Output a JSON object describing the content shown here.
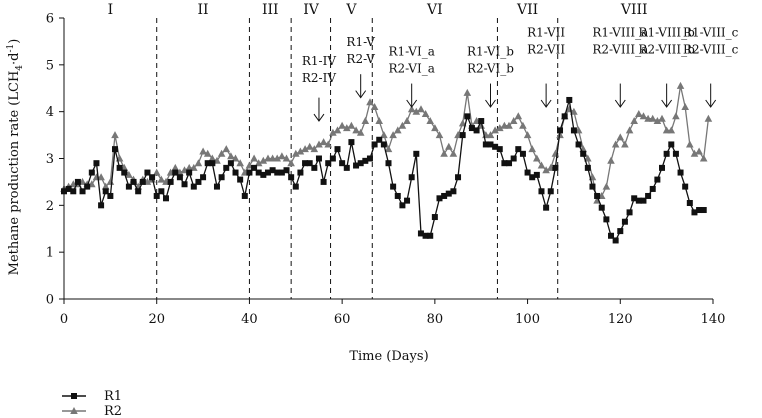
{
  "chart_data": {
    "type": "line",
    "title": "",
    "xlabel": "Time (Days)",
    "ylabel": "Methane production rate (LCH",
    "ylabel_sub": "4",
    "ylabel_mid": "·d",
    "ylabel_sup": "-1",
    "ylabel_end": ")",
    "xlim": [
      0,
      140
    ],
    "ylim": [
      0,
      6
    ],
    "x_ticks": [
      0,
      20,
      40,
      60,
      80,
      100,
      120,
      140
    ],
    "y_ticks": [
      0,
      1,
      2,
      3,
      4,
      5,
      6
    ],
    "grid": false,
    "legend_position": "bottom-left",
    "phase_boundaries": [
      20,
      40,
      49,
      57.5,
      66.5,
      93.5,
      106.5
    ],
    "phases": [
      {
        "label": "I",
        "x": 10
      },
      {
        "label": "II",
        "x": 30
      },
      {
        "label": "III",
        "x": 44.5
      },
      {
        "label": "IV",
        "x": 53.3
      },
      {
        "label": "V",
        "x": 62
      },
      {
        "label": "VI",
        "x": 80
      },
      {
        "label": "VII",
        "x": 100
      },
      {
        "label": "VIII",
        "x": 123
      }
    ],
    "annotations": [
      {
        "lines": [
          "R1-IV",
          "R2-IV"
        ],
        "x": 55,
        "text_y": 5.0,
        "arrow_from": 4.3,
        "arrow_to": 3.8
      },
      {
        "lines": [
          "R1-V",
          "R2-V"
        ],
        "x": 64,
        "text_y": 5.4,
        "arrow_from": 4.8,
        "arrow_to": 4.3
      },
      {
        "lines": [
          "R1-VI_a",
          "R2-VI_a"
        ],
        "x": 75,
        "text_y": 5.2,
        "arrow_from": 4.6,
        "arrow_to": 4.1
      },
      {
        "lines": [
          "R1-VI_b",
          "R2-VI_b"
        ],
        "x": 92,
        "text_y": 5.2,
        "arrow_from": 4.6,
        "arrow_to": 4.1
      },
      {
        "lines": [
          "R1-VII",
          "R2-VII"
        ],
        "x": 104,
        "text_y": 5.6,
        "arrow_from": 4.6,
        "arrow_to": 4.1
      },
      {
        "lines": [
          "R1-VIII_a",
          "R2-VIII_a"
        ],
        "x": 120,
        "text_y": 5.6,
        "arrow_from": 4.6,
        "arrow_to": 4.1
      },
      {
        "lines": [
          "R1-VIII_b",
          "R2-VIII_b"
        ],
        "x": 130,
        "text_y": 5.6,
        "arrow_from": 4.6,
        "arrow_to": 4.1
      },
      {
        "lines": [
          "R1-VIII_c",
          "R2-VIII_c"
        ],
        "x": 139.5,
        "text_y": 5.6,
        "arrow_from": 4.6,
        "arrow_to": 4.1
      }
    ],
    "series": [
      {
        "name": "R1",
        "marker": "square",
        "color": "#111111",
        "points": [
          [
            0,
            2.3
          ],
          [
            1,
            2.35
          ],
          [
            2,
            2.3
          ],
          [
            3,
            2.5
          ],
          [
            4,
            2.3
          ],
          [
            5,
            2.4
          ],
          [
            6,
            2.7
          ],
          [
            7,
            2.9
          ],
          [
            8,
            2.0
          ],
          [
            9,
            2.3
          ],
          [
            10,
            2.2
          ],
          [
            11,
            3.2
          ],
          [
            12,
            2.8
          ],
          [
            13,
            2.7
          ],
          [
            14,
            2.4
          ],
          [
            15,
            2.5
          ],
          [
            16,
            2.3
          ],
          [
            17,
            2.5
          ],
          [
            18,
            2.7
          ],
          [
            19,
            2.6
          ],
          [
            20,
            2.2
          ],
          [
            21,
            2.3
          ],
          [
            22,
            2.15
          ],
          [
            23,
            2.5
          ],
          [
            24,
            2.7
          ],
          [
            25,
            2.6
          ],
          [
            26,
            2.45
          ],
          [
            27,
            2.7
          ],
          [
            28,
            2.4
          ],
          [
            29,
            2.5
          ],
          [
            30,
            2.6
          ],
          [
            31,
            2.9
          ],
          [
            32,
            2.9
          ],
          [
            33,
            2.4
          ],
          [
            34,
            2.6
          ],
          [
            35,
            2.8
          ],
          [
            36,
            2.9
          ],
          [
            37,
            2.7
          ],
          [
            38,
            2.55
          ],
          [
            39,
            2.2
          ],
          [
            40,
            2.7
          ],
          [
            41,
            2.8
          ],
          [
            42,
            2.7
          ],
          [
            43,
            2.65
          ],
          [
            44,
            2.7
          ],
          [
            45,
            2.75
          ],
          [
            46,
            2.7
          ],
          [
            47,
            2.7
          ],
          [
            48,
            2.75
          ],
          [
            49,
            2.6
          ],
          [
            50,
            2.4
          ],
          [
            51,
            2.7
          ],
          [
            52,
            2.9
          ],
          [
            53,
            2.9
          ],
          [
            54,
            2.8
          ],
          [
            55,
            3.0
          ],
          [
            56,
            2.5
          ],
          [
            57,
            2.9
          ],
          [
            58,
            3.0
          ],
          [
            59,
            3.2
          ],
          [
            60,
            2.9
          ],
          [
            61,
            2.8
          ],
          [
            62,
            3.35
          ],
          [
            63,
            2.85
          ],
          [
            64,
            2.9
          ],
          [
            65,
            2.95
          ],
          [
            66,
            3.0
          ],
          [
            67,
            3.3
          ],
          [
            68,
            3.4
          ],
          [
            69,
            3.3
          ],
          [
            70,
            2.9
          ],
          [
            71,
            2.4
          ],
          [
            72,
            2.2
          ],
          [
            73,
            2.0
          ],
          [
            74,
            2.1
          ],
          [
            75,
            2.6
          ],
          [
            76,
            3.1
          ],
          [
            77,
            1.4
          ],
          [
            78,
            1.35
          ],
          [
            79,
            1.35
          ],
          [
            80,
            1.75
          ],
          [
            81,
            2.15
          ],
          [
            82,
            2.2
          ],
          [
            83,
            2.25
          ],
          [
            84,
            2.3
          ],
          [
            85,
            2.6
          ],
          [
            86,
            3.5
          ],
          [
            87,
            3.9
          ],
          [
            88,
            3.65
          ],
          [
            89,
            3.6
          ],
          [
            90,
            3.8
          ],
          [
            91,
            3.3
          ],
          [
            92,
            3.3
          ],
          [
            93,
            3.25
          ],
          [
            94,
            3.2
          ],
          [
            95,
            2.9
          ],
          [
            96,
            2.9
          ],
          [
            97,
            3.0
          ],
          [
            98,
            3.2
          ],
          [
            99,
            3.1
          ],
          [
            100,
            2.7
          ],
          [
            101,
            2.6
          ],
          [
            102,
            2.65
          ],
          [
            103,
            2.3
          ],
          [
            104,
            1.95
          ],
          [
            105,
            2.3
          ],
          [
            106,
            2.8
          ],
          [
            107,
            3.6
          ],
          [
            108,
            3.9
          ],
          [
            109,
            4.25
          ],
          [
            110,
            3.6
          ],
          [
            111,
            3.3
          ],
          [
            112,
            3.1
          ],
          [
            113,
            2.8
          ],
          [
            114,
            2.4
          ],
          [
            115,
            2.2
          ],
          [
            116,
            1.95
          ],
          [
            117,
            1.7
          ],
          [
            118,
            1.35
          ],
          [
            119,
            1.25
          ],
          [
            120,
            1.45
          ],
          [
            121,
            1.65
          ],
          [
            122,
            1.85
          ],
          [
            123,
            2.15
          ],
          [
            124,
            2.1
          ],
          [
            125,
            2.1
          ],
          [
            126,
            2.2
          ],
          [
            127,
            2.35
          ],
          [
            128,
            2.55
          ],
          [
            129,
            2.8
          ],
          [
            130,
            3.1
          ],
          [
            131,
            3.3
          ],
          [
            132,
            3.1
          ],
          [
            133,
            2.7
          ],
          [
            134,
            2.4
          ],
          [
            135,
            2.05
          ],
          [
            136,
            1.85
          ],
          [
            137,
            1.9
          ],
          [
            138,
            1.9
          ]
        ]
      },
      {
        "name": "R2",
        "marker": "triangle",
        "color": "#777777",
        "points": [
          [
            0,
            2.35
          ],
          [
            1,
            2.4
          ],
          [
            2,
            2.45
          ],
          [
            3,
            2.45
          ],
          [
            4,
            2.5
          ],
          [
            5,
            2.45
          ],
          [
            6,
            2.45
          ],
          [
            7,
            2.6
          ],
          [
            8,
            2.6
          ],
          [
            9,
            2.4
          ],
          [
            10,
            2.5
          ],
          [
            11,
            3.5
          ],
          [
            12,
            3.0
          ],
          [
            13,
            2.8
          ],
          [
            14,
            2.65
          ],
          [
            15,
            2.55
          ],
          [
            16,
            2.4
          ],
          [
            17,
            2.55
          ],
          [
            18,
            2.5
          ],
          [
            19,
            2.55
          ],
          [
            20,
            2.7
          ],
          [
            21,
            2.55
          ],
          [
            22,
            2.5
          ],
          [
            23,
            2.7
          ],
          [
            24,
            2.8
          ],
          [
            25,
            2.7
          ],
          [
            26,
            2.75
          ],
          [
            27,
            2.8
          ],
          [
            28,
            2.8
          ],
          [
            29,
            2.9
          ],
          [
            30,
            3.15
          ],
          [
            31,
            3.1
          ],
          [
            32,
            3.0
          ],
          [
            33,
            2.95
          ],
          [
            34,
            3.1
          ],
          [
            35,
            3.2
          ],
          [
            36,
            3.05
          ],
          [
            37,
            3.0
          ],
          [
            38,
            2.9
          ],
          [
            39,
            2.7
          ],
          [
            40,
            2.85
          ],
          [
            41,
            3.0
          ],
          [
            42,
            2.9
          ],
          [
            43,
            2.95
          ],
          [
            44,
            3.0
          ],
          [
            45,
            3.0
          ],
          [
            46,
            3.0
          ],
          [
            47,
            3.05
          ],
          [
            48,
            3.0
          ],
          [
            49,
            2.9
          ],
          [
            50,
            3.1
          ],
          [
            51,
            3.15
          ],
          [
            52,
            3.2
          ],
          [
            53,
            3.25
          ],
          [
            54,
            3.2
          ],
          [
            55,
            3.3
          ],
          [
            56,
            3.35
          ],
          [
            57,
            3.3
          ],
          [
            58,
            3.55
          ],
          [
            59,
            3.6
          ],
          [
            60,
            3.7
          ],
          [
            61,
            3.65
          ],
          [
            62,
            3.7
          ],
          [
            63,
            3.6
          ],
          [
            64,
            3.55
          ],
          [
            65,
            3.8
          ],
          [
            66,
            4.2
          ],
          [
            67,
            4.1
          ],
          [
            68,
            3.8
          ],
          [
            69,
            3.5
          ],
          [
            70,
            3.2
          ],
          [
            71,
            3.5
          ],
          [
            72,
            3.6
          ],
          [
            73,
            3.7
          ],
          [
            74,
            3.8
          ],
          [
            75,
            4.05
          ],
          [
            76,
            4.0
          ],
          [
            77,
            4.05
          ],
          [
            78,
            3.95
          ],
          [
            79,
            3.8
          ],
          [
            80,
            3.65
          ],
          [
            81,
            3.5
          ],
          [
            82,
            3.1
          ],
          [
            83,
            3.25
          ],
          [
            84,
            3.1
          ],
          [
            85,
            3.5
          ],
          [
            86,
            3.75
          ],
          [
            87,
            4.4
          ],
          [
            88,
            3.7
          ],
          [
            89,
            3.8
          ],
          [
            90,
            3.7
          ],
          [
            91,
            3.5
          ],
          [
            92,
            3.5
          ],
          [
            93,
            3.6
          ],
          [
            94,
            3.65
          ],
          [
            95,
            3.7
          ],
          [
            96,
            3.7
          ],
          [
            97,
            3.8
          ],
          [
            98,
            3.9
          ],
          [
            99,
            3.7
          ],
          [
            100,
            3.5
          ],
          [
            101,
            3.2
          ],
          [
            102,
            3.0
          ],
          [
            103,
            2.85
          ],
          [
            104,
            2.75
          ],
          [
            105,
            2.8
          ],
          [
            106,
            3.1
          ],
          [
            107,
            3.5
          ],
          [
            108,
            3.9
          ],
          [
            109,
            4.05
          ],
          [
            110,
            4.0
          ],
          [
            111,
            3.6
          ],
          [
            112,
            3.2
          ],
          [
            113,
            3.0
          ],
          [
            114,
            2.6
          ],
          [
            115,
            2.1
          ],
          [
            116,
            2.2
          ],
          [
            117,
            2.4
          ],
          [
            118,
            2.95
          ],
          [
            119,
            3.3
          ],
          [
            120,
            3.45
          ],
          [
            121,
            3.3
          ],
          [
            122,
            3.6
          ],
          [
            123,
            3.8
          ],
          [
            124,
            3.95
          ],
          [
            125,
            3.9
          ],
          [
            126,
            3.85
          ],
          [
            127,
            3.85
          ],
          [
            128,
            3.8
          ],
          [
            129,
            3.85
          ],
          [
            130,
            3.6
          ],
          [
            131,
            3.6
          ],
          [
            132,
            3.9
          ],
          [
            133,
            4.55
          ],
          [
            134,
            4.1
          ],
          [
            135,
            3.3
          ],
          [
            136,
            3.1
          ],
          [
            137,
            3.15
          ],
          [
            138,
            3.0
          ],
          [
            139,
            3.85
          ]
        ]
      }
    ]
  }
}
